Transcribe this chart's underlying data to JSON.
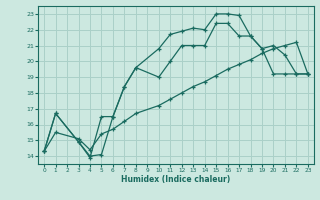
{
  "xlabel": "Humidex (Indice chaleur)",
  "bg_color": "#cce8e0",
  "grid_color": "#aad0c8",
  "line_color": "#1a6b60",
  "xlim": [
    -0.5,
    23.5
  ],
  "ylim": [
    13.5,
    23.5
  ],
  "xticks": [
    0,
    1,
    2,
    3,
    4,
    5,
    6,
    7,
    8,
    9,
    10,
    11,
    12,
    13,
    14,
    15,
    16,
    17,
    18,
    19,
    20,
    21,
    22,
    23
  ],
  "yticks": [
    14,
    15,
    16,
    17,
    18,
    19,
    20,
    21,
    22,
    23
  ],
  "line1_x": [
    0,
    1,
    3,
    4,
    5,
    6,
    7,
    8,
    10,
    11,
    12,
    13,
    14,
    15,
    16,
    17,
    18,
    19,
    20,
    21,
    22,
    23
  ],
  "line1_y": [
    14.3,
    16.7,
    14.9,
    14.0,
    14.1,
    16.5,
    18.4,
    19.6,
    20.8,
    21.7,
    21.9,
    22.1,
    22.0,
    23.0,
    23.0,
    22.9,
    21.6,
    20.8,
    19.2,
    19.2,
    19.2,
    19.2
  ],
  "line2_x": [
    0,
    1,
    3,
    4,
    5,
    6,
    7,
    8,
    10,
    11,
    12,
    13,
    14,
    15,
    16,
    17,
    18,
    19,
    20,
    21,
    22,
    23
  ],
  "line2_y": [
    14.3,
    16.7,
    14.9,
    13.9,
    16.5,
    16.5,
    18.4,
    19.6,
    19.0,
    20.0,
    21.0,
    21.0,
    21.0,
    22.4,
    22.4,
    21.6,
    21.6,
    20.8,
    21.0,
    20.4,
    19.2,
    19.2
  ],
  "line3_x": [
    0,
    1,
    3,
    4,
    5,
    6,
    7,
    8,
    10,
    11,
    12,
    13,
    14,
    15,
    16,
    17,
    18,
    19,
    20,
    21,
    22,
    23
  ],
  "line3_y": [
    14.3,
    15.5,
    15.1,
    14.4,
    15.4,
    15.7,
    16.2,
    16.7,
    17.2,
    17.6,
    18.0,
    18.4,
    18.7,
    19.1,
    19.5,
    19.8,
    20.1,
    20.5,
    20.8,
    21.0,
    21.2,
    19.2
  ]
}
